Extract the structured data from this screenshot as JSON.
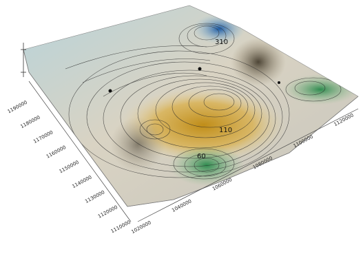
{
  "chart_data": {
    "type": "surface-3d",
    "title": "",
    "xlabel": "",
    "ylabel": "",
    "zlabel": "",
    "x_ticks": [
      "1020000",
      "1040000",
      "1060000",
      "1080000",
      "1100000",
      "1120000"
    ],
    "y_ticks": [
      "1110000",
      "1120000",
      "1130000",
      "1140000",
      "1150000",
      "1160000",
      "1170000",
      "1180000",
      "1190000"
    ],
    "contour_labels": [
      {
        "value": "310",
        "where": "back peak"
      },
      {
        "value": "110",
        "where": "center valley"
      },
      {
        "value": "60",
        "where": "front basin"
      }
    ],
    "colormap": [
      "#3a8f5a",
      "#7fb59a",
      "#c99a1e",
      "#e0c46a",
      "#d8d0b8",
      "#a9c7cc",
      "#1f5fa8"
    ],
    "grid": false,
    "legend": "none"
  }
}
